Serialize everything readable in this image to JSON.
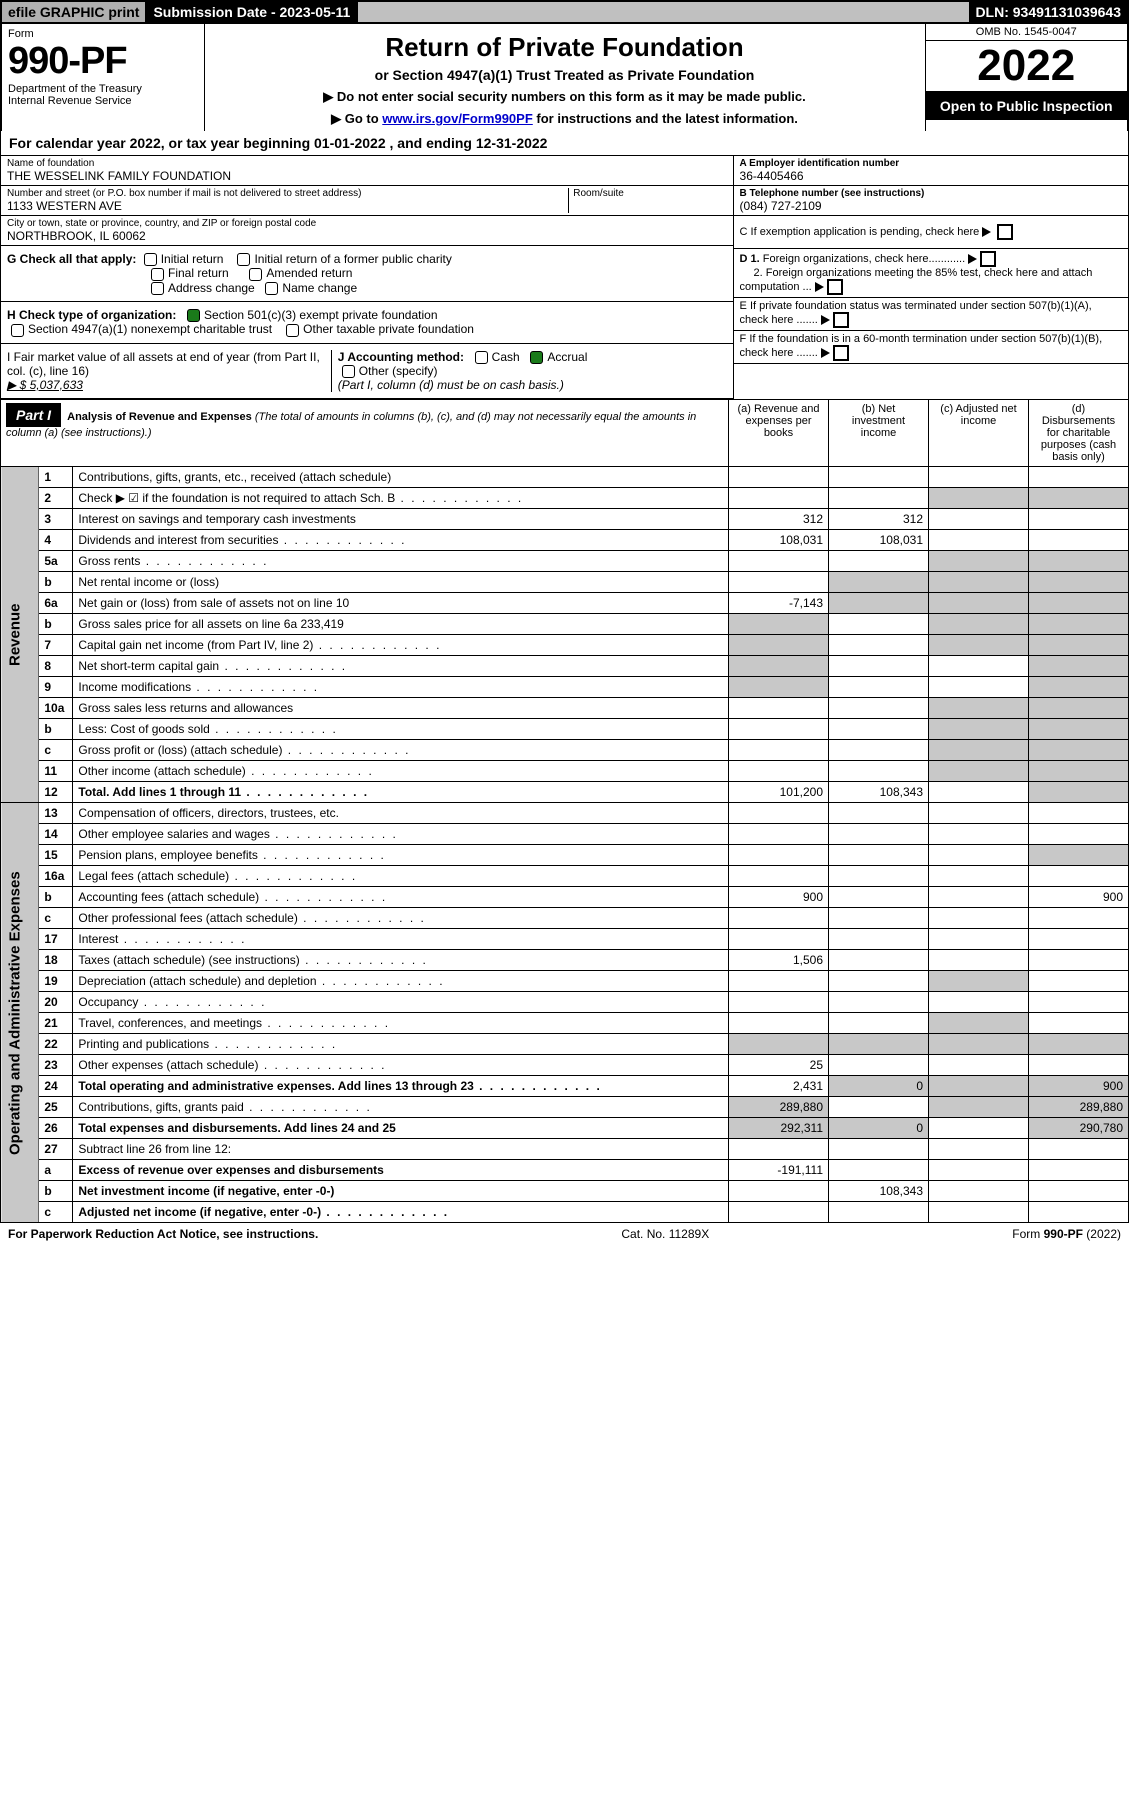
{
  "topbar": {
    "efile": "efile GRAPHIC print",
    "subdate": "Submission Date - 2023-05-11",
    "dln": "DLN: 93491131039643"
  },
  "header": {
    "form_label": "Form",
    "form_num": "990-PF",
    "dept1": "Department of the Treasury",
    "dept2": "Internal Revenue Service",
    "title": "Return of Private Foundation",
    "sub1": "or Section 4947(a)(1) Trust Treated as Private Foundation",
    "sub2a": "▶ Do not enter social security numbers on this form as it may be made public.",
    "sub2b": "▶ Go to ",
    "sub2b_link": "www.irs.gov/Form990PF",
    "sub2c": " for instructions and the latest information.",
    "omb": "OMB No. 1545-0047",
    "year": "2022",
    "open": "Open to Public Inspection"
  },
  "calyear": "For calendar year 2022, or tax year beginning 01-01-2022                       , and ending 12-31-2022",
  "entity": {
    "name_lbl": "Name of foundation",
    "name": "THE WESSELINK FAMILY FOUNDATION",
    "addr_lbl": "Number and street (or P.O. box number if mail is not delivered to street address)",
    "addr": "1133 WESTERN AVE",
    "room_lbl": "Room/suite",
    "city_lbl": "City or town, state or province, country, and ZIP or foreign postal code",
    "city": "NORTHBROOK, IL  60062",
    "a_lbl": "A Employer identification number",
    "a_val": "36-4405466",
    "b_lbl": "B Telephone number (see instructions)",
    "b_val": "(084) 727-2109",
    "c_lbl": "C If exemption application is pending, check here",
    "d1": "D 1. Foreign organizations, check here............",
    "d2": "2. Foreign organizations meeting the 85% test, check here and attach computation ...",
    "e_lbl": "E  If private foundation status was terminated under section 507(b)(1)(A), check here .......",
    "f_lbl": "F  If the foundation is in a 60-month termination under section 507(b)(1)(B), check here .......",
    "g_lbl": "G Check all that apply:",
    "g1": "Initial return",
    "g2": "Initial return of a former public charity",
    "g3": "Final return",
    "g4": "Amended return",
    "g5": "Address change",
    "g6": "Name change",
    "h_lbl": "H Check type of organization:",
    "h1": "Section 501(c)(3) exempt private foundation",
    "h2": "Section 4947(a)(1) nonexempt charitable trust",
    "h3": "Other taxable private foundation",
    "i_lbl": "I Fair market value of all assets at end of year (from Part II, col. (c), line 16)",
    "i_val": "▶ $  5,037,633",
    "j_lbl": "J Accounting method:",
    "j1": "Cash",
    "j2": "Accrual",
    "j3": "Other (specify)",
    "j4": "(Part I, column (d) must be on cash basis.)"
  },
  "part1": {
    "label": "Part I",
    "title": "Analysis of Revenue and Expenses",
    "title_sub": "(The total of amounts in columns (b), (c), and (d) may not necessarily equal the amounts in column (a) (see instructions).)",
    "col_a": "(a)  Revenue and expenses per books",
    "col_b": "(b)  Net investment income",
    "col_c": "(c)  Adjusted net income",
    "col_d": "(d)  Disbursements for charitable purposes (cash basis only)"
  },
  "side_rev": "Revenue",
  "side_exp": "Operating and Administrative Expenses",
  "rows": [
    {
      "n": "1",
      "d": "Contributions, gifts, grants, etc., received (attach schedule)"
    },
    {
      "n": "2",
      "d": "Check ▶ ☑ if the foundation is not required to attach Sch. B",
      "dots": true
    },
    {
      "n": "3",
      "d": "Interest on savings and temporary cash investments",
      "a": "312",
      "b": "312"
    },
    {
      "n": "4",
      "d": "Dividends and interest from securities",
      "dots": true,
      "a": "108,031",
      "b": "108,031"
    },
    {
      "n": "5a",
      "d": "Gross rents",
      "dots": true
    },
    {
      "n": "b",
      "d": "Net rental income or (loss)"
    },
    {
      "n": "6a",
      "d": "Net gain or (loss) from sale of assets not on line 10",
      "a": "-7,143"
    },
    {
      "n": "b",
      "d": "Gross sales price for all assets on line 6a          233,419"
    },
    {
      "n": "7",
      "d": "Capital gain net income (from Part IV, line 2)",
      "dots": true
    },
    {
      "n": "8",
      "d": "Net short-term capital gain",
      "dots": true
    },
    {
      "n": "9",
      "d": "Income modifications",
      "dots": true
    },
    {
      "n": "10a",
      "d": "Gross sales less returns and allowances"
    },
    {
      "n": "b",
      "d": "Less: Cost of goods sold",
      "dots": true
    },
    {
      "n": "c",
      "d": "Gross profit or (loss) (attach schedule)",
      "dots": true
    },
    {
      "n": "11",
      "d": "Other income (attach schedule)",
      "dots": true
    },
    {
      "n": "12",
      "d": "Total. Add lines 1 through 11",
      "dots": true,
      "bold": true,
      "a": "101,200",
      "b": "108,343"
    },
    {
      "n": "13",
      "d": "Compensation of officers, directors, trustees, etc."
    },
    {
      "n": "14",
      "d": "Other employee salaries and wages",
      "dots": true
    },
    {
      "n": "15",
      "d": "Pension plans, employee benefits",
      "dots": true
    },
    {
      "n": "16a",
      "d": "Legal fees (attach schedule)",
      "dots": true
    },
    {
      "n": "b",
      "d": "Accounting fees (attach schedule)",
      "dots": true,
      "a": "900",
      "dd": "900"
    },
    {
      "n": "c",
      "d": "Other professional fees (attach schedule)",
      "dots": true
    },
    {
      "n": "17",
      "d": "Interest",
      "dots": true
    },
    {
      "n": "18",
      "d": "Taxes (attach schedule) (see instructions)",
      "dots": true,
      "a": "1,506"
    },
    {
      "n": "19",
      "d": "Depreciation (attach schedule) and depletion",
      "dots": true
    },
    {
      "n": "20",
      "d": "Occupancy",
      "dots": true
    },
    {
      "n": "21",
      "d": "Travel, conferences, and meetings",
      "dots": true
    },
    {
      "n": "22",
      "d": "Printing and publications",
      "dots": true
    },
    {
      "n": "23",
      "d": "Other expenses (attach schedule)",
      "dots": true,
      "a": "25"
    },
    {
      "n": "24",
      "d": "Total operating and administrative expenses. Add lines 13 through 23",
      "dots": true,
      "bold": true,
      "a": "2,431",
      "b": "0",
      "dd": "900"
    },
    {
      "n": "25",
      "d": "Contributions, gifts, grants paid",
      "dots": true,
      "a": "289,880",
      "dd": "289,880"
    },
    {
      "n": "26",
      "d": "Total expenses and disbursements. Add lines 24 and 25",
      "bold": true,
      "a": "292,311",
      "b": "0",
      "dd": "290,780"
    },
    {
      "n": "27",
      "d": "Subtract line 26 from line 12:"
    },
    {
      "n": "a",
      "d": "Excess of revenue over expenses and disbursements",
      "bold": true,
      "a": "-191,111"
    },
    {
      "n": "b",
      "d": "Net investment income (if negative, enter -0-)",
      "bold": true,
      "b": "108,343"
    },
    {
      "n": "c",
      "d": "Adjusted net income (if negative, enter -0-)",
      "bold": true,
      "dots": true
    }
  ],
  "footer": {
    "left": "For Paperwork Reduction Act Notice, see instructions.",
    "mid": "Cat. No. 11289X",
    "right": "Form 990-PF (2022)"
  }
}
